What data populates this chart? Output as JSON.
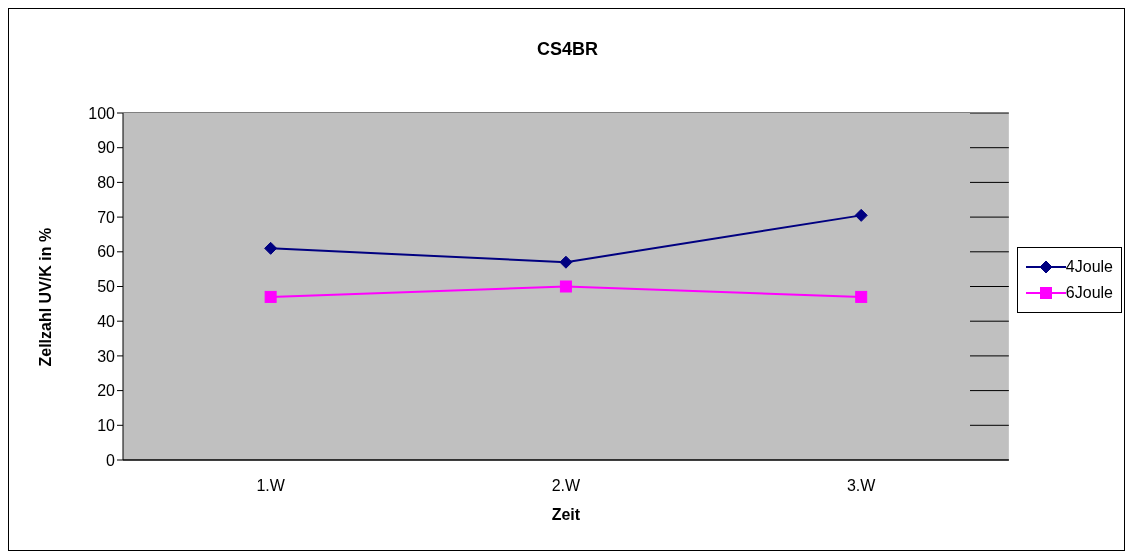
{
  "chart_data": {
    "type": "line",
    "title": "CS4BR",
    "xlabel": "Zeit",
    "ylabel": "Zellzahl UV/K in %",
    "categories": [
      "1.W",
      "2.W",
      "3.W"
    ],
    "series": [
      {
        "name": "4Joule",
        "color": "#000080",
        "marker": "diamond",
        "values": [
          61,
          57,
          70.5
        ]
      },
      {
        "name": "6Joule",
        "color": "#ff00ff",
        "marker": "square",
        "values": [
          47,
          50,
          47
        ]
      }
    ],
    "ylim": [
      0,
      100
    ],
    "yticks": [
      0,
      10,
      20,
      30,
      40,
      50,
      60,
      70,
      80,
      90,
      100
    ],
    "grid": "y",
    "legend": "right"
  }
}
